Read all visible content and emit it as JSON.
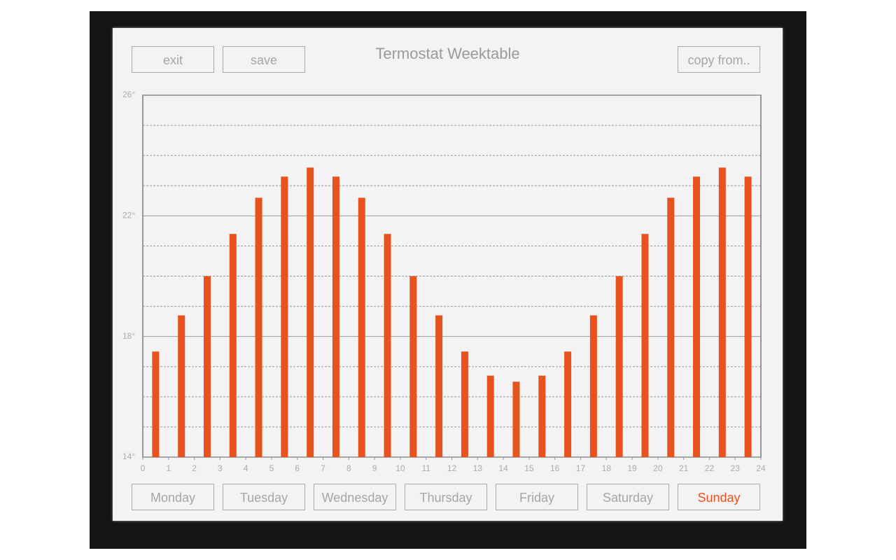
{
  "header": {
    "title": "Termostat Weektable",
    "left_buttons": [
      "exit",
      "save"
    ],
    "right_button": "copy from.."
  },
  "chart_data": {
    "type": "bar",
    "color": "#e8521c",
    "x": [
      0.5,
      1.5,
      2.5,
      3.5,
      4.5,
      5.5,
      6.5,
      7.5,
      8.5,
      9.5,
      10.5,
      11.5,
      12.5,
      13.5,
      14.5,
      15.5,
      16.5,
      17.5,
      18.5,
      19.5,
      20.5,
      21.5,
      22.5,
      23.5
    ],
    "values": [
      17.5,
      18.7,
      20,
      21.4,
      22.6,
      23.3,
      23.6,
      23.3,
      22.6,
      21.4,
      20,
      18.7,
      17.5,
      16.7,
      16.5,
      16.7,
      17.5,
      18.7,
      20,
      21.4,
      22.6,
      23.3,
      23.6,
      23.3
    ],
    "xlim": [
      0,
      24
    ],
    "xticks": [
      0,
      1,
      2,
      3,
      4,
      5,
      6,
      7,
      8,
      9,
      10,
      11,
      12,
      13,
      14,
      15,
      16,
      17,
      18,
      19,
      20,
      21,
      22,
      23,
      24
    ],
    "ylim": [
      14,
      26
    ],
    "yticks": [
      {
        "value": 14,
        "label": "14°"
      },
      {
        "value": 18,
        "label": "18°"
      },
      {
        "value": 22,
        "label": "22°"
      },
      {
        "value": 26,
        "label": "26°"
      }
    ],
    "minor_yticks": [
      15,
      16,
      17,
      19,
      20,
      21,
      23,
      24,
      25
    ],
    "grid": true
  },
  "day_tabs": [
    "Monday",
    "Tuesday",
    "Wednesday",
    "Thursday",
    "Friday",
    "Saturday",
    "Sunday"
  ],
  "selected_day_index": 6
}
